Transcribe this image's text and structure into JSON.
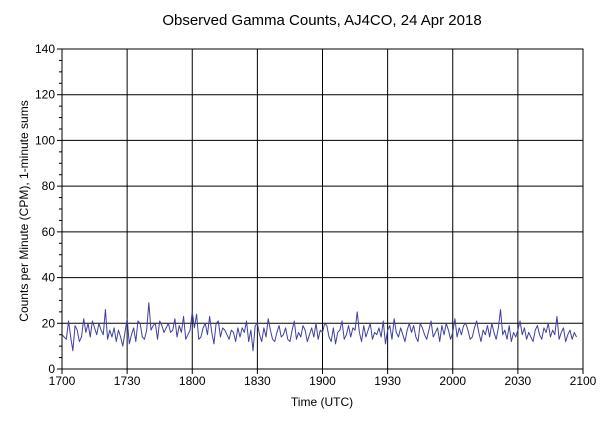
{
  "chart_data": {
    "type": "line",
    "title": "Observed Gamma Counts, AJ4CO, 24 Apr 2018",
    "xlabel": "Time (UTC)",
    "ylabel": "Counts per Minute (CPM), 1-minute sums",
    "x_tick_labels": [
      "1700",
      "1730",
      "1800",
      "1830",
      "1900",
      "1930",
      "2000",
      "2030",
      "2100"
    ],
    "x_tick_minutes": [
      0,
      30,
      60,
      90,
      120,
      150,
      180,
      210,
      240
    ],
    "xlim_minutes": [
      0,
      240
    ],
    "y_ticks": [
      0,
      20,
      40,
      60,
      80,
      100,
      120,
      140
    ],
    "ylim": [
      0,
      140
    ],
    "grid": true,
    "series": [
      {
        "color": "#4040a0",
        "x_unit": "minutes after 17:00 UTC, 1-minute steps",
        "values": [
          15,
          14,
          13,
          21,
          14,
          8,
          19,
          17,
          12,
          14,
          22,
          16,
          20,
          14,
          21,
          18,
          15,
          20,
          17,
          15,
          26,
          13,
          17,
          14,
          18,
          12,
          17,
          14,
          10,
          16,
          22,
          11,
          15,
          18,
          12,
          21,
          20,
          14,
          13,
          17,
          29,
          17,
          19,
          20,
          13,
          21,
          19,
          16,
          18,
          20,
          16,
          17,
          22,
          14,
          19,
          16,
          23,
          13,
          15,
          17,
          25,
          18,
          24,
          13,
          14,
          18,
          20,
          15,
          23,
          16,
          11,
          20,
          21,
          14,
          18,
          17,
          15,
          13,
          17,
          16,
          12,
          18,
          14,
          18,
          16,
          21,
          12,
          17,
          8,
          19,
          20,
          15,
          12,
          18,
          14,
          22,
          17,
          13,
          12,
          16,
          19,
          14,
          15,
          18,
          13,
          12,
          17,
          21,
          13,
          16,
          14,
          19,
          17,
          12,
          15,
          18,
          14,
          20,
          13,
          17,
          16,
          20,
          19,
          14,
          12,
          18,
          11,
          16,
          17,
          21,
          13,
          15,
          19,
          14,
          18,
          17,
          25,
          16,
          12,
          19,
          14,
          17,
          20,
          13,
          16,
          15,
          18,
          14,
          21,
          11,
          17,
          19,
          13,
          22,
          16,
          14,
          18,
          15,
          12,
          17,
          20,
          16,
          19,
          14,
          12,
          20,
          18,
          15,
          13,
          17,
          21,
          14,
          16,
          18,
          12,
          19,
          15,
          20,
          17,
          13,
          16,
          22,
          14,
          18,
          15,
          19,
          20,
          17,
          13,
          14,
          18,
          21,
          16,
          12,
          17,
          15,
          19,
          14,
          20,
          16,
          13,
          18,
          26,
          15,
          17,
          13,
          19,
          12,
          16,
          14,
          17,
          21,
          15,
          18,
          13,
          16,
          14,
          12,
          17,
          19,
          15,
          13,
          18,
          16,
          20,
          14,
          17,
          15,
          23,
          13,
          16,
          18,
          12,
          15,
          17,
          13,
          16,
          14
        ]
      }
    ]
  }
}
